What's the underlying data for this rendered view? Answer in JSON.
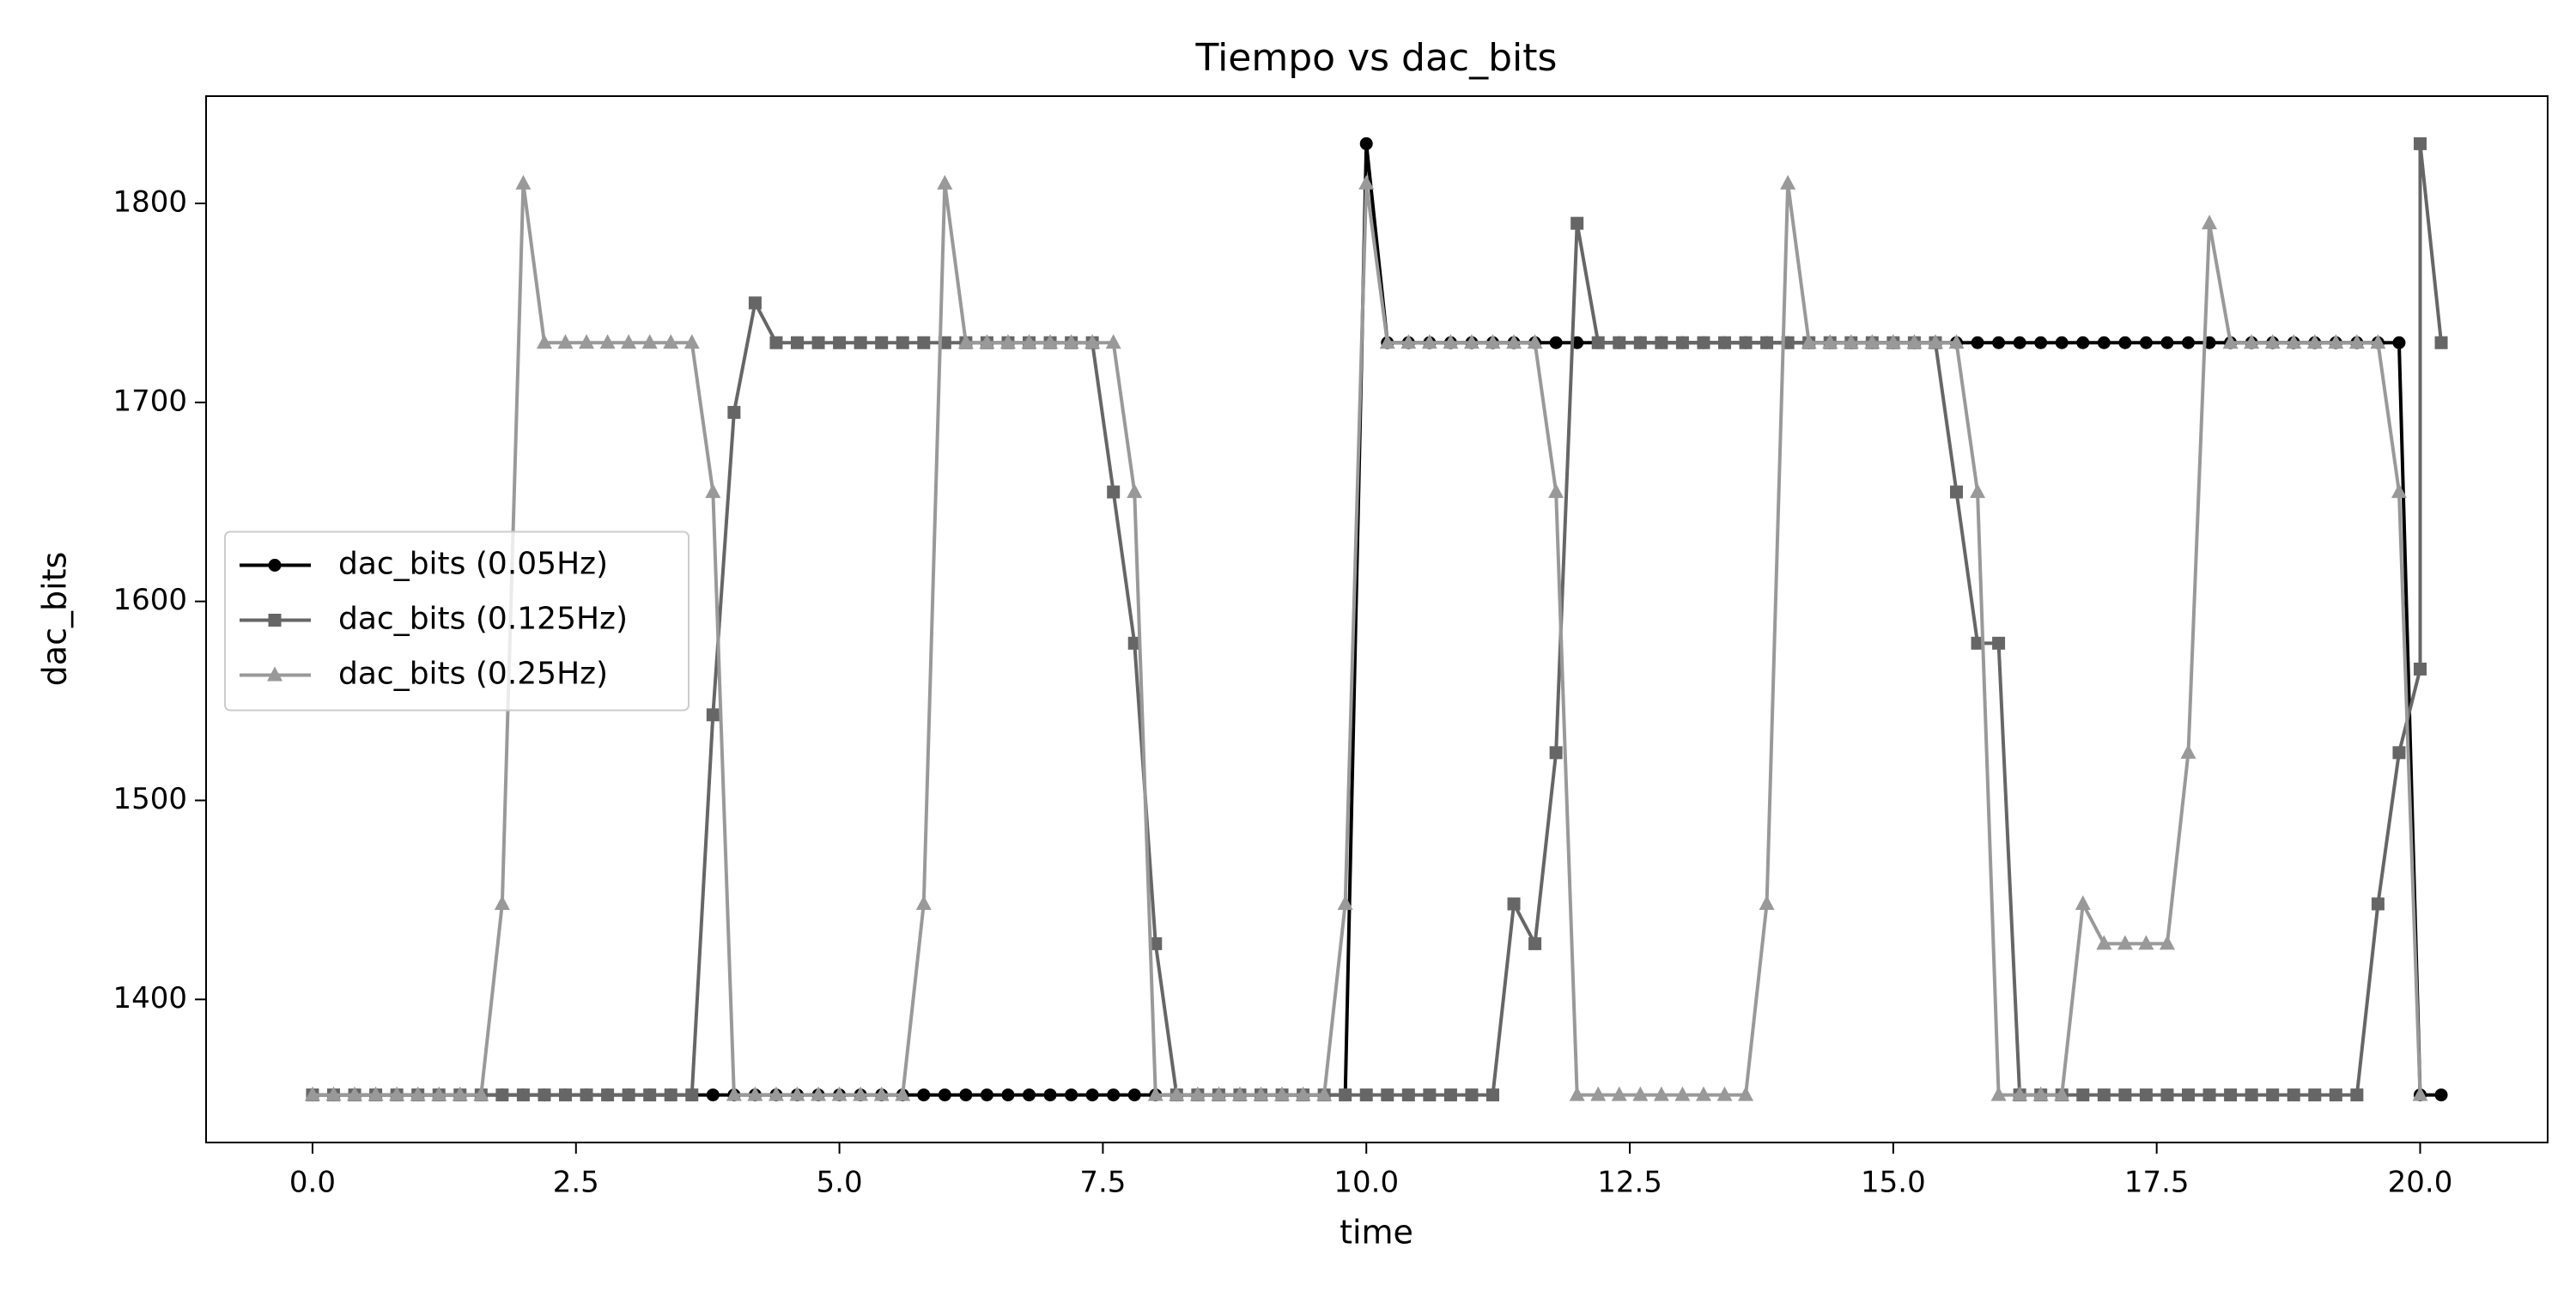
{
  "chart_data": {
    "type": "line",
    "title": "Tiempo vs dac_bits",
    "x_label": "time",
    "y_label": "dac_bits",
    "xlim": [
      -1.01,
      21.21
    ],
    "ylim": [
      1328.1,
      1853.9
    ],
    "xticks": [
      {
        "value": 0,
        "label": "0.0"
      },
      {
        "value": 2.5,
        "label": "2.5"
      },
      {
        "value": 5,
        "label": "5.0"
      },
      {
        "value": 7.5,
        "label": "7.5"
      },
      {
        "value": 10,
        "label": "10.0"
      },
      {
        "value": 12.5,
        "label": "12.5"
      },
      {
        "value": 15,
        "label": "15.0"
      },
      {
        "value": 17.5,
        "label": "17.5"
      },
      {
        "value": 20,
        "label": "20.0"
      }
    ],
    "yticks": [
      1400,
      1500,
      1600,
      1700,
      1800
    ],
    "grid": false,
    "legend": "center left",
    "series": [
      {
        "name": "dac_bits (0.05Hz)",
        "color": "#000000",
        "marker": "circle",
        "x": [
          0,
          0.2,
          0.4,
          0.6,
          0.8,
          1,
          1.2,
          1.4,
          1.6,
          1.8,
          2,
          2.2,
          2.4,
          2.6,
          2.8,
          3,
          3.2,
          3.4,
          3.6,
          3.8,
          4,
          4.2,
          4.4,
          4.6,
          4.8,
          5,
          5.2,
          5.4,
          5.6,
          5.8,
          6,
          6.2,
          6.4,
          6.6,
          6.8,
          7,
          7.2,
          7.4,
          7.6,
          7.8,
          8,
          8.2,
          8.4,
          8.6,
          8.8,
          9,
          9.2,
          9.4,
          9.6,
          9.8,
          10,
          10.2,
          10.4,
          10.6,
          10.8,
          11,
          11.2,
          11.4,
          11.6,
          11.8,
          12,
          12.2,
          12.4,
          12.6,
          12.8,
          13,
          13.2,
          13.4,
          13.6,
          13.8,
          14,
          14.2,
          14.4,
          14.6,
          14.8,
          15,
          15.2,
          15.4,
          15.6,
          15.8,
          16,
          16.2,
          16.4,
          16.6,
          16.8,
          17,
          17.2,
          17.4,
          17.6,
          17.8,
          18,
          18.2,
          18.4,
          18.6,
          18.8,
          19,
          19.2,
          19.4,
          19.6,
          19.8,
          20,
          20.2
        ],
        "values": [
          1352,
          1352,
          1352,
          1352,
          1352,
          1352,
          1352,
          1352,
          1352,
          1352,
          1352,
          1352,
          1352,
          1352,
          1352,
          1352,
          1352,
          1352,
          1352,
          1352,
          1352,
          1352,
          1352,
          1352,
          1352,
          1352,
          1352,
          1352,
          1352,
          1352,
          1352,
          1352,
          1352,
          1352,
          1352,
          1352,
          1352,
          1352,
          1352,
          1352,
          1352,
          1352,
          1352,
          1352,
          1352,
          1352,
          1352,
          1352,
          1352,
          1352,
          1830,
          1730,
          1730,
          1730,
          1730,
          1730,
          1730,
          1730,
          1730,
          1730,
          1730,
          1730,
          1730,
          1730,
          1730,
          1730,
          1730,
          1730,
          1730,
          1730,
          1730,
          1730,
          1730,
          1730,
          1730,
          1730,
          1730,
          1730,
          1730,
          1730,
          1730,
          1730,
          1730,
          1730,
          1730,
          1730,
          1730,
          1730,
          1730,
          1730,
          1730,
          1730,
          1730,
          1730,
          1730,
          1730,
          1730,
          1730,
          1730,
          1730,
          1352,
          1352
        ]
      },
      {
        "name": "dac_bits (0.125Hz)",
        "color": "#666666",
        "marker": "square",
        "x": [
          0,
          0.2,
          0.4,
          0.6,
          0.8,
          1,
          1.2,
          1.4,
          1.6,
          1.8,
          2,
          2.2,
          2.4,
          2.6,
          2.8,
          3,
          3.2,
          3.4,
          3.6,
          3.8,
          4,
          4.2,
          4.4,
          4.6,
          4.8,
          5,
          5.2,
          5.4,
          5.6,
          5.8,
          6,
          6.2,
          6.4,
          6.6,
          6.8,
          7,
          7.2,
          7.4,
          7.6,
          7.8,
          8,
          8.2,
          8.4,
          8.6,
          8.8,
          9,
          9.2,
          9.4,
          9.6,
          9.8,
          10,
          10.2,
          10.4,
          10.6,
          10.8,
          11,
          11.2,
          11.4,
          11.6,
          11.8,
          12,
          12.2,
          12.4,
          12.6,
          12.8,
          13,
          13.2,
          13.4,
          13.6,
          13.8,
          14,
          14.2,
          14.4,
          14.6,
          14.8,
          15,
          15.2,
          15.4,
          15.6,
          15.8,
          16,
          16.2,
          16.4,
          16.6,
          16.8,
          17,
          17.2,
          17.4,
          17.6,
          17.8,
          18,
          18.2,
          18.4,
          18.6,
          18.8,
          19,
          19.2,
          19.4,
          19.6,
          19.8,
          20,
          20,
          20.2
        ],
        "values": [
          1352,
          1352,
          1352,
          1352,
          1352,
          1352,
          1352,
          1352,
          1352,
          1352,
          1352,
          1352,
          1352,
          1352,
          1352,
          1352,
          1352,
          1352,
          1352,
          1543,
          1695,
          1750,
          1730,
          1730,
          1730,
          1730,
          1730,
          1730,
          1730,
          1730,
          1730,
          1730,
          1730,
          1730,
          1730,
          1730,
          1730,
          1730,
          1655,
          1579,
          1428,
          1352,
          1352,
          1352,
          1352,
          1352,
          1352,
          1352,
          1352,
          1352,
          1352,
          1352,
          1352,
          1352,
          1352,
          1352,
          1352,
          1448,
          1428,
          1524,
          1790,
          1730,
          1730,
          1730,
          1730,
          1730,
          1730,
          1730,
          1730,
          1730,
          1730,
          1730,
          1730,
          1730,
          1730,
          1730,
          1730,
          1730,
          1655,
          1579,
          1579,
          1352,
          1352,
          1352,
          1352,
          1352,
          1352,
          1352,
          1352,
          1352,
          1352,
          1352,
          1352,
          1352,
          1352,
          1352,
          1352,
          1352,
          1448,
          1524,
          1566,
          1830,
          1730
        ]
      },
      {
        "name": "dac_bits (0.25Hz)",
        "color": "#999999",
        "marker": "triangle",
        "x": [
          0,
          0.2,
          0.4,
          0.6,
          0.8,
          1,
          1.2,
          1.4,
          1.6,
          1.8,
          2,
          2.2,
          2.4,
          2.6,
          2.8,
          3,
          3.2,
          3.4,
          3.6,
          3.8,
          4,
          4.2,
          4.4,
          4.6,
          4.8,
          5,
          5.2,
          5.4,
          5.6,
          5.8,
          6,
          6.2,
          6.4,
          6.6,
          6.8,
          7,
          7.2,
          7.4,
          7.6,
          7.8,
          8,
          8.2,
          8.4,
          8.6,
          8.8,
          9,
          9.2,
          9.4,
          9.6,
          9.8,
          10,
          10.2,
          10.4,
          10.6,
          10.8,
          11,
          11.2,
          11.4,
          11.6,
          11.8,
          12,
          12.2,
          12.4,
          12.6,
          12.8,
          13,
          13.2,
          13.4,
          13.6,
          13.8,
          14,
          14.2,
          14.4,
          14.6,
          14.8,
          15,
          15.2,
          15.4,
          15.6,
          15.8,
          16,
          16.2,
          16.4,
          16.6,
          16.8,
          17,
          17.2,
          17.4,
          17.6,
          17.8,
          18,
          18.2,
          18.4,
          18.6,
          18.8,
          19,
          19.2,
          19.4,
          19.6,
          19.8,
          20
        ],
        "values": [
          1352,
          1352,
          1352,
          1352,
          1352,
          1352,
          1352,
          1352,
          1352,
          1448,
          1810,
          1730,
          1730,
          1730,
          1730,
          1730,
          1730,
          1730,
          1730,
          1655,
          1352,
          1352,
          1352,
          1352,
          1352,
          1352,
          1352,
          1352,
          1352,
          1448,
          1810,
          1730,
          1730,
          1730,
          1730,
          1730,
          1730,
          1730,
          1730,
          1655,
          1352,
          1352,
          1352,
          1352,
          1352,
          1352,
          1352,
          1352,
          1352,
          1448,
          1810,
          1730,
          1730,
          1730,
          1730,
          1730,
          1730,
          1730,
          1730,
          1655,
          1352,
          1352,
          1352,
          1352,
          1352,
          1352,
          1352,
          1352,
          1352,
          1448,
          1810,
          1730,
          1730,
          1730,
          1730,
          1730,
          1730,
          1730,
          1730,
          1655,
          1352,
          1352,
          1352,
          1352,
          1448,
          1428,
          1428,
          1428,
          1428,
          1524,
          1790,
          1730,
          1730,
          1730,
          1730,
          1730,
          1730,
          1730,
          1730,
          1655,
          1352
        ]
      }
    ]
  }
}
